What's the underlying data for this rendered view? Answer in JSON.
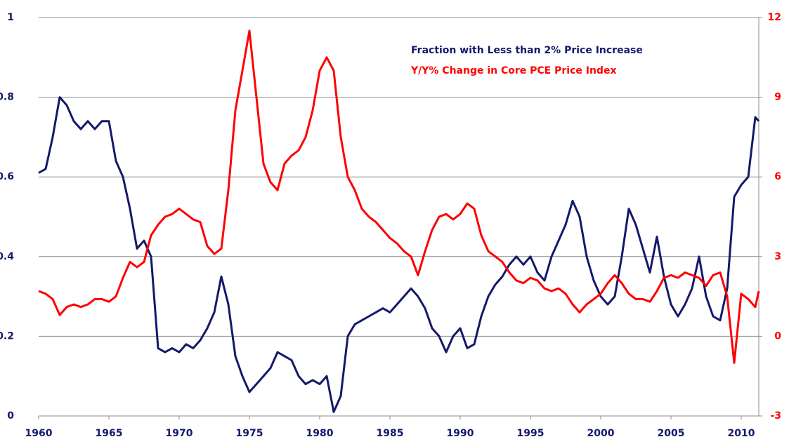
{
  "chart_data": {
    "type": "line",
    "x": [
      1960,
      1960.5,
      1961,
      1961.5,
      1962,
      1962.5,
      1963,
      1963.5,
      1964,
      1964.5,
      1965,
      1965.5,
      1966,
      1966.5,
      1967,
      1967.5,
      1968,
      1968.5,
      1969,
      1969.5,
      1970,
      1970.5,
      1971,
      1971.5,
      1972,
      1972.5,
      1973,
      1973.5,
      1974,
      1974.5,
      1975,
      1975.5,
      1976,
      1976.5,
      1977,
      1977.5,
      1978,
      1978.5,
      1979,
      1979.5,
      1980,
      1980.5,
      1981,
      1981.5,
      1982,
      1982.5,
      1983,
      1983.5,
      1984,
      1984.5,
      1985,
      1985.5,
      1986,
      1986.5,
      1987,
      1987.5,
      1988,
      1988.5,
      1989,
      1989.5,
      1990,
      1990.5,
      1991,
      1991.5,
      1992,
      1992.5,
      1993,
      1993.5,
      1994,
      1994.5,
      1995,
      1995.5,
      1996,
      1996.5,
      1997,
      1997.5,
      1998,
      1998.5,
      1999,
      1999.5,
      2000,
      2000.5,
      2001,
      2001.5,
      2002,
      2002.5,
      2003,
      2003.5,
      2004,
      2004.5,
      2005,
      2005.5,
      2006,
      2006.5,
      2007,
      2007.5,
      2008,
      2008.5,
      2009,
      2009.5,
      2010,
      2010.5,
      2011,
      2011.25
    ],
    "series": [
      {
        "name": "Fraction with Less than  2% Price Increase",
        "color": "#14196b",
        "axis": "y",
        "values": [
          0.61,
          0.62,
          0.7,
          0.8,
          0.78,
          0.74,
          0.72,
          0.74,
          0.72,
          0.74,
          0.74,
          0.64,
          0.6,
          0.52,
          0.42,
          0.44,
          0.4,
          0.17,
          0.16,
          0.17,
          0.16,
          0.18,
          0.17,
          0.19,
          0.22,
          0.26,
          0.35,
          0.28,
          0.15,
          0.1,
          0.06,
          0.08,
          0.1,
          0.12,
          0.16,
          0.15,
          0.14,
          0.1,
          0.08,
          0.09,
          0.08,
          0.1,
          0.01,
          0.05,
          0.2,
          0.23,
          0.24,
          0.25,
          0.26,
          0.27,
          0.26,
          0.28,
          0.3,
          0.32,
          0.3,
          0.27,
          0.22,
          0.2,
          0.16,
          0.2,
          0.22,
          0.17,
          0.18,
          0.25,
          0.3,
          0.33,
          0.35,
          0.38,
          0.4,
          0.38,
          0.4,
          0.36,
          0.34,
          0.4,
          0.44,
          0.48,
          0.54,
          0.5,
          0.4,
          0.34,
          0.3,
          0.28,
          0.3,
          0.4,
          0.52,
          0.48,
          0.42,
          0.36,
          0.45,
          0.35,
          0.28,
          0.25,
          0.28,
          0.32,
          0.4,
          0.3,
          0.25,
          0.24,
          0.32,
          0.55,
          0.58,
          0.6,
          0.75,
          0.74
        ]
      },
      {
        "name": "Y/Y% Change  in Core PCE Price Index",
        "color": "#ff0000",
        "axis": "y2",
        "values": [
          1.7,
          1.6,
          1.4,
          0.8,
          1.1,
          1.2,
          1.1,
          1.2,
          1.4,
          1.4,
          1.3,
          1.5,
          2.2,
          2.8,
          2.6,
          2.8,
          3.8,
          4.2,
          4.5,
          4.6,
          4.8,
          4.6,
          4.4,
          4.3,
          3.4,
          3.1,
          3.3,
          5.5,
          8.5,
          10.0,
          11.5,
          9.0,
          6.5,
          5.8,
          5.5,
          6.5,
          6.8,
          7.0,
          7.5,
          8.5,
          10.0,
          10.5,
          10.0,
          7.5,
          6.0,
          5.5,
          4.8,
          4.5,
          4.3,
          4.0,
          3.7,
          3.5,
          3.2,
          3.0,
          2.3,
          3.2,
          4.0,
          4.5,
          4.6,
          4.4,
          4.6,
          5.0,
          4.8,
          3.8,
          3.2,
          3.0,
          2.8,
          2.4,
          2.1,
          2.0,
          2.2,
          2.1,
          1.8,
          1.7,
          1.8,
          1.6,
          1.2,
          0.9,
          1.2,
          1.4,
          1.6,
          2.0,
          2.3,
          2.0,
          1.6,
          1.4,
          1.4,
          1.3,
          1.7,
          2.2,
          2.3,
          2.2,
          2.4,
          2.3,
          2.2,
          1.9,
          2.3,
          2.4,
          1.5,
          -1.0,
          1.6,
          1.4,
          1.1,
          1.7
        ]
      }
    ],
    "xlim": [
      1960,
      2011.25
    ],
    "xticks": [
      1960,
      1965,
      1970,
      1975,
      1980,
      1985,
      1990,
      1995,
      2000,
      2005,
      2010
    ],
    "ylim": [
      0,
      1
    ],
    "yticks": [
      0,
      0.2,
      0.4,
      0.6,
      0.8,
      1
    ],
    "y2lim": [
      -3,
      12
    ],
    "y2ticks": [
      -3,
      0,
      3,
      6,
      9,
      12
    ],
    "grid": true,
    "legend": "top-right"
  }
}
